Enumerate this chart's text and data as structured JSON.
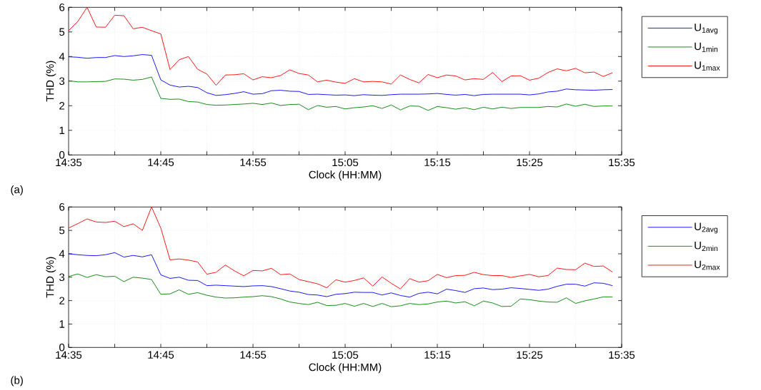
{
  "chart_data": [
    {
      "type": "line",
      "ylabel": "THD (%)",
      "xlabel": "Clock (HH:MM)",
      "annotations": [
        "(a)"
      ],
      "grid": true,
      "legend": "right",
      "marker": "none",
      "line_style": "solid",
      "xlim": [
        14.5833,
        15.5833
      ],
      "ylim": [
        0,
        6
      ],
      "yticks": [
        0,
        1,
        2,
        3,
        4,
        5,
        6
      ],
      "xticks": [
        {
          "value": 14.5833,
          "label": "14:35"
        },
        {
          "value": 14.6667,
          "label": null
        },
        {
          "value": 14.75,
          "label": "14:45"
        },
        {
          "value": 14.8333,
          "label": null
        },
        {
          "value": 14.9167,
          "label": "14:55"
        },
        {
          "value": 15.0,
          "label": null
        },
        {
          "value": 15.0833,
          "label": "15:05"
        },
        {
          "value": 15.1667,
          "label": null
        },
        {
          "value": 15.25,
          "label": "15:15"
        },
        {
          "value": 15.3333,
          "label": null
        },
        {
          "value": 15.4167,
          "label": "15:25"
        },
        {
          "value": 15.5,
          "label": null
        },
        {
          "value": 15.5833,
          "label": "15:35"
        }
      ],
      "x": [
        14.5833,
        14.6,
        14.6167,
        14.6333,
        14.65,
        14.6667,
        14.6833,
        14.7,
        14.7167,
        14.7333,
        14.75,
        14.7667,
        14.7833,
        14.8,
        14.8167,
        14.8333,
        14.85,
        14.8667,
        14.8833,
        14.9,
        14.9167,
        14.9333,
        14.95,
        14.9667,
        14.9833,
        15.0,
        15.0167,
        15.0333,
        15.05,
        15.0667,
        15.0833,
        15.1,
        15.1167,
        15.1333,
        15.15,
        15.1667,
        15.1833,
        15.2,
        15.2167,
        15.2333,
        15.25,
        15.2667,
        15.2833,
        15.3,
        15.3167,
        15.3333,
        15.35,
        15.3667,
        15.3833,
        15.4,
        15.4167,
        15.4333,
        15.45,
        15.4667,
        15.4833,
        15.5,
        15.5167,
        15.5333,
        15.55,
        15.5667
      ],
      "series": [
        {
          "name": "U$_{1avg}$",
          "color": "#0000ff",
          "values": [
            3.99,
            3.97,
            3.93,
            3.96,
            3.96,
            4.04,
            4.0,
            4.03,
            4.08,
            4.05,
            3.05,
            2.84,
            2.76,
            2.79,
            2.74,
            2.53,
            2.42,
            2.45,
            2.5,
            2.57,
            2.47,
            2.49,
            2.61,
            2.63,
            2.59,
            2.58,
            2.46,
            2.47,
            2.45,
            2.43,
            2.44,
            2.41,
            2.45,
            2.43,
            2.42,
            2.45,
            2.47,
            2.47,
            2.47,
            2.48,
            2.5,
            2.46,
            2.43,
            2.46,
            2.41,
            2.46,
            2.47,
            2.47,
            2.47,
            2.47,
            2.44,
            2.48,
            2.56,
            2.59,
            2.68,
            2.65,
            2.64,
            2.63,
            2.65,
            2.66
          ]
        },
        {
          "name": "U$_{1min}$",
          "color": "#008000",
          "values": [
            3.02,
            2.97,
            2.97,
            2.98,
            2.99,
            3.09,
            3.08,
            3.04,
            3.07,
            3.17,
            2.3,
            2.26,
            2.27,
            2.17,
            2.15,
            2.05,
            2.02,
            2.03,
            2.05,
            2.07,
            2.1,
            2.05,
            2.11,
            2.01,
            2.05,
            2.06,
            1.84,
            2.01,
            1.94,
            1.97,
            1.87,
            1.92,
            1.95,
            2.0,
            1.89,
            2.03,
            1.83,
            1.99,
            1.98,
            1.81,
            1.97,
            1.92,
            1.86,
            1.92,
            1.84,
            1.94,
            1.87,
            1.94,
            1.89,
            1.93,
            1.93,
            1.93,
            1.97,
            1.95,
            2.07,
            1.98,
            2.06,
            1.97,
            1.99,
            1.99
          ]
        },
        {
          "name": "U$_{1max}$",
          "color": "#ff0000",
          "values": [
            5.05,
            5.43,
            6.0,
            5.2,
            5.19,
            5.68,
            5.66,
            5.13,
            5.19,
            5.05,
            4.92,
            3.47,
            3.87,
            4.0,
            3.48,
            3.29,
            2.83,
            3.25,
            3.26,
            3.3,
            3.05,
            3.18,
            3.14,
            3.23,
            3.46,
            3.31,
            3.25,
            2.97,
            3.04,
            2.96,
            2.91,
            3.1,
            2.97,
            2.99,
            2.97,
            2.88,
            3.25,
            3.07,
            2.93,
            3.27,
            3.14,
            3.25,
            3.21,
            3.05,
            3.1,
            3.07,
            3.35,
            2.98,
            3.21,
            3.22,
            3.04,
            3.12,
            3.35,
            3.5,
            3.42,
            3.52,
            3.34,
            3.37,
            3.19,
            3.34
          ]
        }
      ]
    },
    {
      "type": "line",
      "ylabel": "THD (%)",
      "xlabel": "Clock (HH:MM)",
      "annotations": [
        "(b)"
      ],
      "grid": true,
      "legend": "right",
      "marker": "none",
      "line_style": "solid",
      "xlim": [
        14.5833,
        15.5833
      ],
      "ylim": [
        0,
        6
      ],
      "yticks": [
        0,
        1,
        2,
        3,
        4,
        5,
        6
      ],
      "xticks": [
        {
          "value": 14.5833,
          "label": "14:35"
        },
        {
          "value": 14.6667,
          "label": null
        },
        {
          "value": 14.75,
          "label": "14:45"
        },
        {
          "value": 14.8333,
          "label": null
        },
        {
          "value": 14.9167,
          "label": "14:55"
        },
        {
          "value": 15.0,
          "label": null
        },
        {
          "value": 15.0833,
          "label": "15:05"
        },
        {
          "value": 15.1667,
          "label": null
        },
        {
          "value": 15.25,
          "label": "15:15"
        },
        {
          "value": 15.3333,
          "label": null
        },
        {
          "value": 15.4167,
          "label": "15:25"
        },
        {
          "value": 15.5,
          "label": null
        },
        {
          "value": 15.5833,
          "label": "15:35"
        }
      ],
      "x": [
        14.5833,
        14.6,
        14.6167,
        14.6333,
        14.65,
        14.6667,
        14.6833,
        14.7,
        14.7167,
        14.7333,
        14.75,
        14.7667,
        14.7833,
        14.8,
        14.8167,
        14.8333,
        14.85,
        14.8667,
        14.8833,
        14.9,
        14.9167,
        14.9333,
        14.95,
        14.9667,
        14.9833,
        15.0,
        15.0167,
        15.0333,
        15.05,
        15.0667,
        15.0833,
        15.1,
        15.1167,
        15.1333,
        15.15,
        15.1667,
        15.1833,
        15.2,
        15.2167,
        15.2333,
        15.25,
        15.2667,
        15.2833,
        15.3,
        15.3167,
        15.3333,
        15.35,
        15.3667,
        15.3833,
        15.4,
        15.4167,
        15.4333,
        15.45,
        15.4667,
        15.4833,
        15.5,
        15.5167,
        15.5333,
        15.55,
        15.5667
      ],
      "series": [
        {
          "name": "U$_{2avg}$",
          "color": "#0000ff",
          "values": [
            4.0,
            3.96,
            3.93,
            3.92,
            3.96,
            4.05,
            3.86,
            3.93,
            3.87,
            3.96,
            3.1,
            2.95,
            3.0,
            2.87,
            2.86,
            2.64,
            2.66,
            2.64,
            2.62,
            2.6,
            2.63,
            2.64,
            2.6,
            2.51,
            2.41,
            2.36,
            2.26,
            2.24,
            2.17,
            2.27,
            2.3,
            2.36,
            2.35,
            2.35,
            2.24,
            2.33,
            2.22,
            2.15,
            2.31,
            2.36,
            2.29,
            2.49,
            2.43,
            2.35,
            2.51,
            2.54,
            2.47,
            2.49,
            2.55,
            2.52,
            2.48,
            2.44,
            2.49,
            2.61,
            2.7,
            2.7,
            2.62,
            2.76,
            2.74,
            2.64
          ]
        },
        {
          "name": "U$_{2min}$",
          "color": "#008000",
          "values": [
            3.03,
            3.14,
            2.99,
            3.11,
            3.02,
            3.04,
            2.81,
            3.0,
            2.96,
            2.9,
            2.27,
            2.29,
            2.46,
            2.27,
            2.34,
            2.23,
            2.15,
            2.11,
            2.12,
            2.15,
            2.17,
            2.21,
            2.17,
            2.07,
            1.94,
            1.88,
            1.83,
            1.93,
            1.79,
            1.8,
            1.88,
            1.76,
            1.88,
            1.75,
            1.88,
            1.74,
            1.78,
            1.88,
            1.83,
            1.86,
            1.94,
            1.98,
            1.9,
            1.95,
            1.78,
            1.98,
            1.9,
            1.75,
            1.76,
            2.07,
            2.04,
            1.98,
            1.94,
            1.93,
            2.12,
            1.88,
            1.99,
            2.07,
            2.16,
            2.16
          ]
        },
        {
          "name": "U$_{2max}$",
          "color": "#ff0000",
          "values": [
            5.1,
            5.29,
            5.49,
            5.36,
            5.34,
            5.39,
            5.16,
            5.28,
            5.0,
            6.0,
            5.1,
            3.74,
            3.78,
            3.73,
            3.65,
            3.13,
            3.21,
            3.52,
            3.27,
            3.06,
            3.29,
            3.27,
            3.38,
            3.11,
            3.14,
            2.9,
            2.81,
            2.72,
            2.55,
            2.89,
            2.79,
            2.86,
            2.97,
            2.62,
            3.01,
            2.74,
            2.5,
            2.94,
            2.79,
            2.85,
            3.12,
            2.98,
            3.07,
            3.08,
            3.21,
            3.11,
            3.07,
            3.07,
            2.99,
            3.06,
            3.12,
            3.02,
            3.07,
            3.39,
            3.33,
            3.32,
            3.6,
            3.46,
            3.48,
            3.22
          ]
        }
      ]
    }
  ]
}
